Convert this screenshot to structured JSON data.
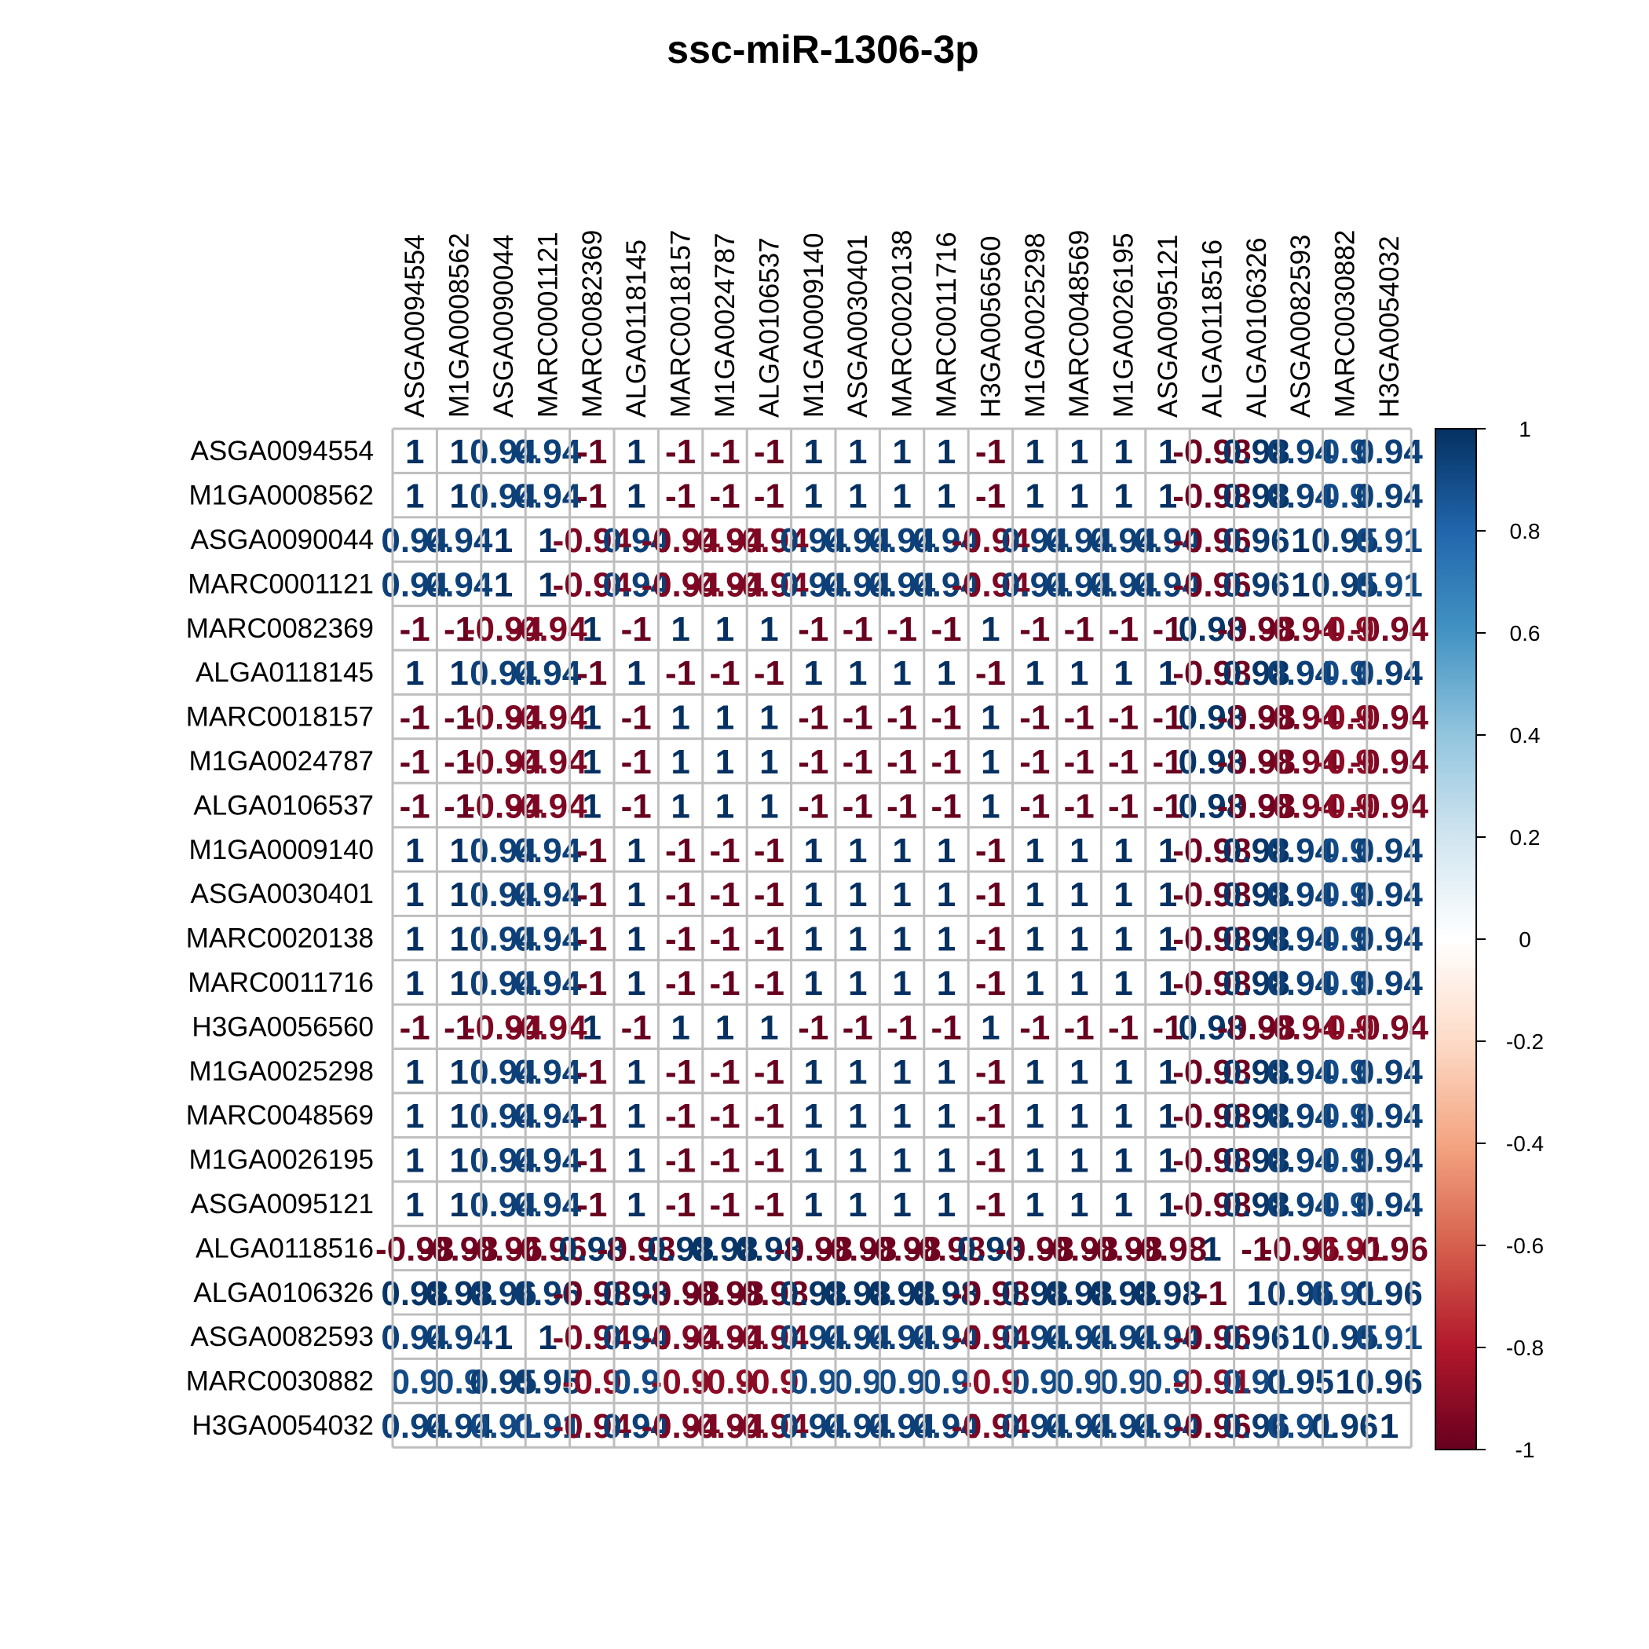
{
  "chart_data": {
    "type": "heatmap",
    "title": "ssc-miR-1306-3p",
    "labels": [
      "ASGA0094554",
      "M1GA0008562",
      "ASGA0090044",
      "MARC0001121",
      "MARC0082369",
      "ALGA0118145",
      "MARC0018157",
      "M1GA0024787",
      "ALGA0106537",
      "M1GA0009140",
      "ASGA0030401",
      "MARC0020138",
      "MARC0011716",
      "H3GA0056560",
      "M1GA0025298",
      "MARC0048569",
      "M1GA0026195",
      "ASGA0095121",
      "ALGA0118516",
      "ALGA0106326",
      "ASGA0082593",
      "MARC0030882",
      "H3GA0054032"
    ],
    "matrix": [
      [
        1,
        1,
        0.94,
        0.94,
        -1,
        1,
        -1,
        -1,
        -1,
        1,
        1,
        1,
        1,
        -1,
        1,
        1,
        1,
        1,
        -0.98,
        0.98,
        0.94,
        0.9,
        0.94
      ],
      [
        1,
        1,
        0.94,
        0.94,
        -1,
        1,
        -1,
        -1,
        -1,
        1,
        1,
        1,
        1,
        -1,
        1,
        1,
        1,
        1,
        -0.98,
        0.98,
        0.94,
        0.9,
        0.94
      ],
      [
        0.94,
        0.94,
        1,
        1,
        -0.94,
        0.94,
        -0.94,
        -0.94,
        -0.94,
        0.94,
        0.94,
        0.94,
        0.94,
        -0.94,
        0.94,
        0.94,
        0.94,
        0.94,
        -0.96,
        0.96,
        1,
        0.95,
        0.91
      ],
      [
        0.94,
        0.94,
        1,
        1,
        -0.94,
        0.94,
        -0.94,
        -0.94,
        -0.94,
        0.94,
        0.94,
        0.94,
        0.94,
        -0.94,
        0.94,
        0.94,
        0.94,
        0.94,
        -0.96,
        0.96,
        1,
        0.95,
        0.91
      ],
      [
        -1,
        -1,
        -0.94,
        -0.94,
        1,
        -1,
        1,
        1,
        1,
        -1,
        -1,
        -1,
        -1,
        1,
        -1,
        -1,
        -1,
        -1,
        0.98,
        -0.98,
        -0.94,
        -0.9,
        -0.94
      ],
      [
        1,
        1,
        0.94,
        0.94,
        -1,
        1,
        -1,
        -1,
        -1,
        1,
        1,
        1,
        1,
        -1,
        1,
        1,
        1,
        1,
        -0.98,
        0.98,
        0.94,
        0.9,
        0.94
      ],
      [
        -1,
        -1,
        -0.94,
        -0.94,
        1,
        -1,
        1,
        1,
        1,
        -1,
        -1,
        -1,
        -1,
        1,
        -1,
        -1,
        -1,
        -1,
        0.98,
        -0.98,
        -0.94,
        -0.9,
        -0.94
      ],
      [
        -1,
        -1,
        -0.94,
        -0.94,
        1,
        -1,
        1,
        1,
        1,
        -1,
        -1,
        -1,
        -1,
        1,
        -1,
        -1,
        -1,
        -1,
        0.98,
        -0.98,
        -0.94,
        -0.9,
        -0.94
      ],
      [
        -1,
        -1,
        -0.94,
        -0.94,
        1,
        -1,
        1,
        1,
        1,
        -1,
        -1,
        -1,
        -1,
        1,
        -1,
        -1,
        -1,
        -1,
        0.98,
        -0.98,
        -0.94,
        -0.9,
        -0.94
      ],
      [
        1,
        1,
        0.94,
        0.94,
        -1,
        1,
        -1,
        -1,
        -1,
        1,
        1,
        1,
        1,
        -1,
        1,
        1,
        1,
        1,
        -0.98,
        0.98,
        0.94,
        0.9,
        0.94
      ],
      [
        1,
        1,
        0.94,
        0.94,
        -1,
        1,
        -1,
        -1,
        -1,
        1,
        1,
        1,
        1,
        -1,
        1,
        1,
        1,
        1,
        -0.98,
        0.98,
        0.94,
        0.9,
        0.94
      ],
      [
        1,
        1,
        0.94,
        0.94,
        -1,
        1,
        -1,
        -1,
        -1,
        1,
        1,
        1,
        1,
        -1,
        1,
        1,
        1,
        1,
        -0.98,
        0.98,
        0.94,
        0.9,
        0.94
      ],
      [
        1,
        1,
        0.94,
        0.94,
        -1,
        1,
        -1,
        -1,
        -1,
        1,
        1,
        1,
        1,
        -1,
        1,
        1,
        1,
        1,
        -0.98,
        0.98,
        0.94,
        0.9,
        0.94
      ],
      [
        -1,
        -1,
        -0.94,
        -0.94,
        1,
        -1,
        1,
        1,
        1,
        -1,
        -1,
        -1,
        -1,
        1,
        -1,
        -1,
        -1,
        -1,
        0.98,
        -0.98,
        -0.94,
        -0.9,
        -0.94
      ],
      [
        1,
        1,
        0.94,
        0.94,
        -1,
        1,
        -1,
        -1,
        -1,
        1,
        1,
        1,
        1,
        -1,
        1,
        1,
        1,
        1,
        -0.98,
        0.98,
        0.94,
        0.9,
        0.94
      ],
      [
        1,
        1,
        0.94,
        0.94,
        -1,
        1,
        -1,
        -1,
        -1,
        1,
        1,
        1,
        1,
        -1,
        1,
        1,
        1,
        1,
        -0.98,
        0.98,
        0.94,
        0.9,
        0.94
      ],
      [
        1,
        1,
        0.94,
        0.94,
        -1,
        1,
        -1,
        -1,
        -1,
        1,
        1,
        1,
        1,
        -1,
        1,
        1,
        1,
        1,
        -0.98,
        0.98,
        0.94,
        0.9,
        0.94
      ],
      [
        1,
        1,
        0.94,
        0.94,
        -1,
        1,
        -1,
        -1,
        -1,
        1,
        1,
        1,
        1,
        -1,
        1,
        1,
        1,
        1,
        -0.98,
        0.98,
        0.94,
        0.9,
        0.94
      ],
      [
        -0.98,
        -0.98,
        -0.96,
        -0.96,
        0.98,
        -0.98,
        0.98,
        0.98,
        0.98,
        -0.98,
        -0.98,
        -0.98,
        -0.98,
        0.98,
        -0.98,
        -0.98,
        -0.98,
        -0.98,
        1,
        -1,
        -0.96,
        -0.91,
        -0.96
      ],
      [
        0.98,
        0.98,
        0.96,
        0.96,
        -0.98,
        0.98,
        -0.98,
        -0.98,
        -0.98,
        0.98,
        0.98,
        0.98,
        0.98,
        -0.98,
        0.98,
        0.98,
        0.98,
        0.98,
        -1,
        1,
        0.96,
        0.91,
        0.96
      ],
      [
        0.94,
        0.94,
        1,
        1,
        -0.94,
        0.94,
        -0.94,
        -0.94,
        -0.94,
        0.94,
        0.94,
        0.94,
        0.94,
        -0.94,
        0.94,
        0.94,
        0.94,
        0.94,
        -0.96,
        0.96,
        1,
        0.95,
        0.91
      ],
      [
        0.9,
        0.9,
        0.95,
        0.95,
        -0.9,
        0.9,
        -0.9,
        -0.9,
        -0.9,
        0.9,
        0.9,
        0.9,
        0.9,
        -0.9,
        0.9,
        0.9,
        0.9,
        0.9,
        -0.91,
        0.91,
        0.95,
        1,
        0.96
      ],
      [
        0.94,
        0.94,
        0.91,
        0.91,
        -0.94,
        0.94,
        -0.94,
        -0.94,
        -0.94,
        0.94,
        0.94,
        0.94,
        0.94,
        -0.94,
        0.94,
        0.94,
        0.94,
        0.94,
        -0.96,
        0.96,
        0.91,
        0.96,
        1
      ]
    ],
    "colorbar": {
      "range": [
        -1,
        1
      ],
      "ticks": [
        "1",
        "0.8",
        "0.6",
        "0.4",
        "0.2",
        "0",
        "-0.2",
        "-0.4",
        "-0.6",
        "-0.8",
        "-1"
      ],
      "colors": [
        "#67001F",
        "#B2182B",
        "#D6604D",
        "#F4A582",
        "#FDDBC7",
        "#FFFFFF",
        "#D1E5F0",
        "#92C5DE",
        "#4393C3",
        "#2166AC",
        "#053061"
      ]
    },
    "grid": true,
    "legend": "right"
  }
}
